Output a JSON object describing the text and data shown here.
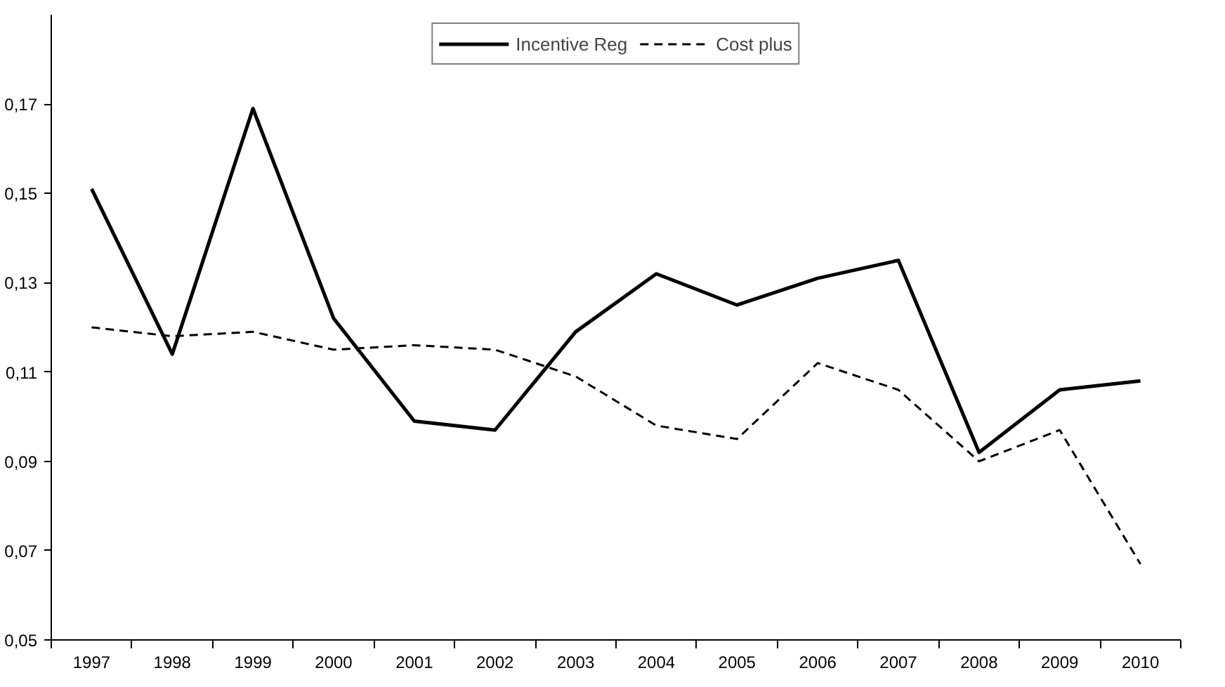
{
  "chart_data": {
    "type": "line",
    "categories": [
      "1997",
      "1998",
      "1999",
      "2000",
      "2001",
      "2002",
      "2003",
      "2004",
      "2005",
      "2006",
      "2007",
      "2008",
      "2009",
      "2010"
    ],
    "series": [
      {
        "name": "Incentive Reg",
        "color": "#000000",
        "line_style": "solid",
        "values": [
          0.151,
          0.114,
          0.169,
          0.122,
          0.099,
          0.097,
          0.119,
          0.132,
          0.125,
          0.131,
          0.135,
          0.092,
          0.106,
          0.108
        ]
      },
      {
        "name": "Cost plus",
        "color": "#000000",
        "line_style": "dashed",
        "values": [
          0.12,
          0.118,
          0.119,
          0.115,
          0.116,
          0.115,
          0.109,
          0.098,
          0.095,
          0.112,
          0.106,
          0.09,
          0.097,
          0.067
        ]
      }
    ],
    "ylim": [
      0.05,
      0.19
    ],
    "yticks": [
      {
        "value": 0.05,
        "label": "0,05"
      },
      {
        "value": 0.07,
        "label": "0,07"
      },
      {
        "value": 0.09,
        "label": "0,09"
      },
      {
        "value": 0.11,
        "label": "0,11"
      },
      {
        "value": 0.13,
        "label": "0,13"
      },
      {
        "value": 0.15,
        "label": "0,15"
      },
      {
        "value": 0.17,
        "label": "0,17"
      }
    ],
    "grid": false,
    "legend": "top",
    "marker": "none"
  }
}
